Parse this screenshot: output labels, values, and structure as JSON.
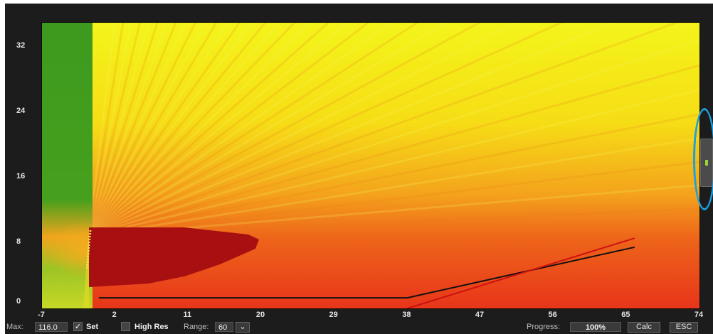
{
  "chart_data": {
    "type": "heatmap",
    "title": "",
    "xlabel": "",
    "ylabel": "",
    "x_ticks": [
      "-7",
      "2",
      "11",
      "20",
      "29",
      "38",
      "47",
      "56",
      "65",
      "74"
    ],
    "y_ticks": [
      "32",
      "24",
      "16",
      "8",
      "0"
    ],
    "xlim": [
      -7,
      74
    ],
    "ylim": [
      0,
      35
    ],
    "colors": {
      "green": "#3f9b1e",
      "yellow": "#f6ec1a",
      "orange": "#f3a21c",
      "red": "#e8361a",
      "dark_red": "#a80f10"
    },
    "lines": [
      {
        "name": "",
        "color": "#111111",
        "points": [
          [
            0,
            1.3
          ],
          [
            38,
            1.3
          ],
          [
            66,
            7.5
          ]
        ]
      },
      {
        "name": "",
        "color": "#cc1010",
        "points": [
          [
            38,
            0
          ],
          [
            66,
            8.6
          ]
        ]
      }
    ]
  },
  "toolbar": {
    "max_label": "Max:",
    "max_value": "116.0",
    "set_checked": "✓",
    "set_label": "Set",
    "high_res_label": "High Res",
    "range_label": "Range:",
    "range_value": "60",
    "range_arrow": "⌄",
    "progress_label": "Progress:",
    "progress_value": "100%",
    "calc_label": "Calc",
    "esc_label": "ESC"
  },
  "side_panel": {
    "handle_icon": "grip-icon"
  }
}
